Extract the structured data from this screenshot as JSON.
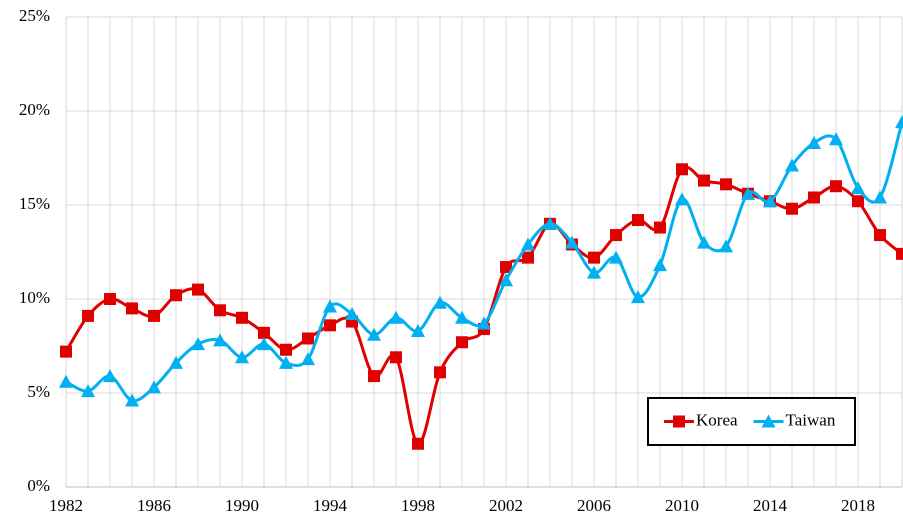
{
  "chart_data": {
    "type": "line",
    "x": [
      1982,
      1983,
      1984,
      1985,
      1986,
      1987,
      1988,
      1989,
      1990,
      1991,
      1992,
      1993,
      1994,
      1995,
      1996,
      1997,
      1998,
      1999,
      2000,
      2001,
      2002,
      2003,
      2004,
      2005,
      2006,
      2007,
      2008,
      2009,
      2010,
      2011,
      2012,
      2013,
      2014,
      2015,
      2016,
      2017,
      2018,
      2019,
      2020
    ],
    "series": [
      {
        "name": "Korea",
        "color": "#e00000",
        "marker": "square",
        "values": [
          7.2,
          9.1,
          10.0,
          9.5,
          9.1,
          10.2,
          10.5,
          9.4,
          9.0,
          8.2,
          7.3,
          7.9,
          8.6,
          8.8,
          5.9,
          6.9,
          2.3,
          6.1,
          7.7,
          8.4,
          11.7,
          12.2,
          14.0,
          12.9,
          12.2,
          13.4,
          14.2,
          13.8,
          16.9,
          16.3,
          16.1,
          15.6,
          15.2,
          14.8,
          15.4,
          16.0,
          15.2,
          13.4,
          12.4
        ]
      },
      {
        "name": "Taiwan",
        "color": "#00b0f0",
        "marker": "triangle",
        "values": [
          5.6,
          5.1,
          5.9,
          4.6,
          5.3,
          6.6,
          7.6,
          7.8,
          6.9,
          7.6,
          6.6,
          6.8,
          9.6,
          9.2,
          8.1,
          9.0,
          8.3,
          9.8,
          9.0,
          8.7,
          11.0,
          12.9,
          14.0,
          13.0,
          11.4,
          12.2,
          10.1,
          11.8,
          15.3,
          13.0,
          12.8,
          15.6,
          15.2,
          17.1,
          18.3,
          18.5,
          15.9,
          15.4,
          19.4
        ]
      }
    ],
    "xlim": [
      1982,
      2020
    ],
    "xticks": [
      1982,
      1986,
      1990,
      1994,
      1998,
      2002,
      2006,
      2010,
      2014,
      2018
    ],
    "ylim": [
      0,
      25
    ],
    "yticks": [
      {
        "value": 0,
        "label": "0%"
      },
      {
        "value": 5,
        "label": "5%"
      },
      {
        "value": 10,
        "label": "10%"
      },
      {
        "value": 15,
        "label": "15%"
      },
      {
        "value": 20,
        "label": "20%"
      },
      {
        "value": 25,
        "label": "25%"
      }
    ],
    "grid": true,
    "legend": "lower right",
    "smooth": true
  }
}
